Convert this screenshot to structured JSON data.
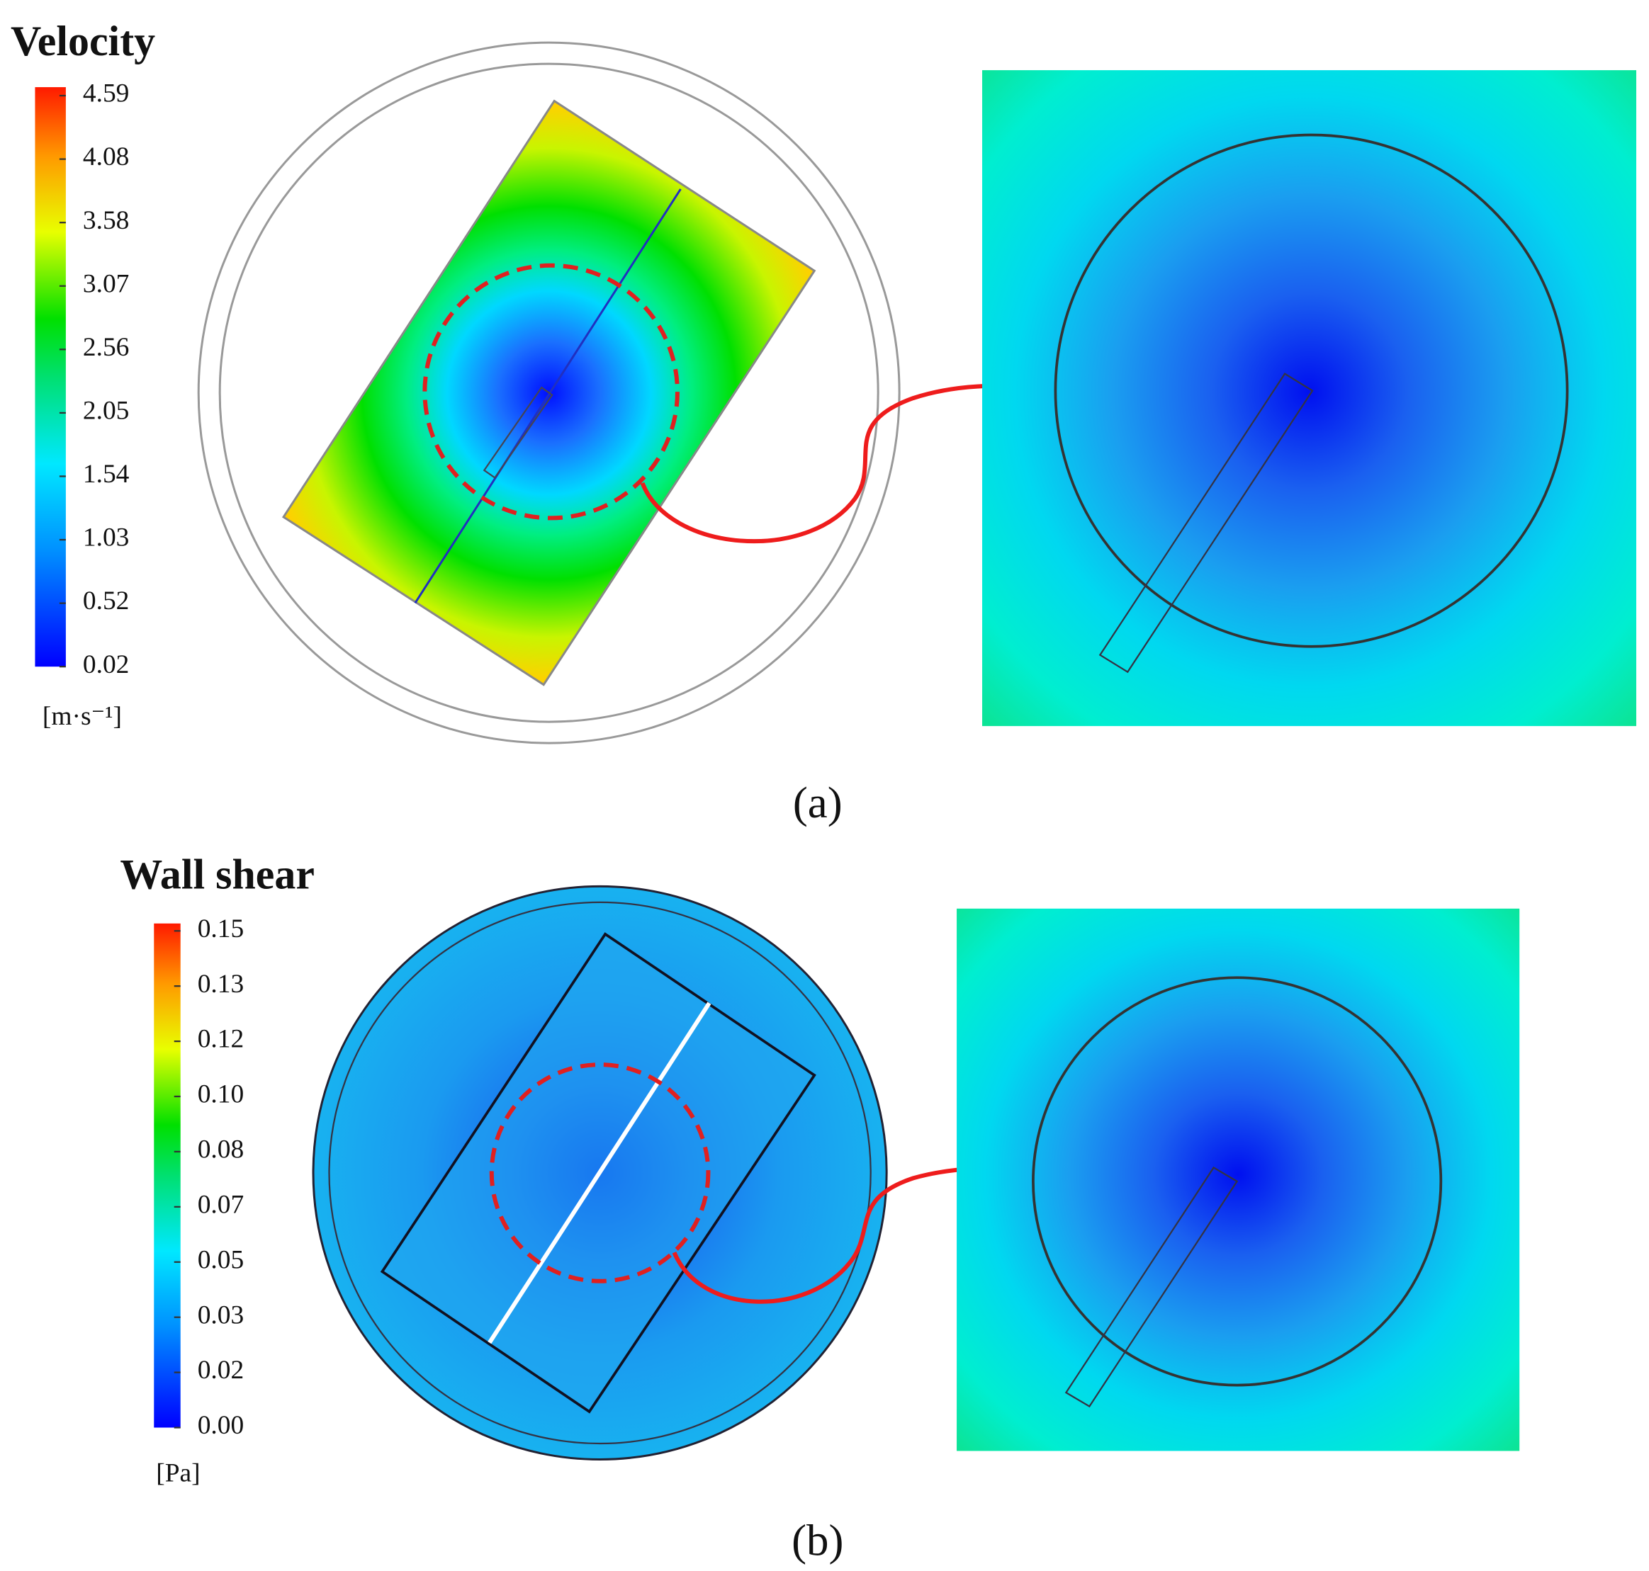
{
  "panels": [
    {
      "title": "Velocity",
      "ticks": [
        "4.59",
        "4.08",
        "3.58",
        "3.07",
        "2.56",
        "2.05",
        "1.54",
        "1.03",
        "0.52",
        "0.02"
      ],
      "unit": "[m·s⁻¹]",
      "label": "(a)"
    },
    {
      "title": "Wall shear",
      "ticks": [
        "0.15",
        "0.13",
        "0.12",
        "0.10",
        "0.08",
        "0.07",
        "0.05",
        "0.03",
        "0.02",
        "0.00"
      ],
      "unit": "[Pa]",
      "label": "(b)"
    }
  ]
}
